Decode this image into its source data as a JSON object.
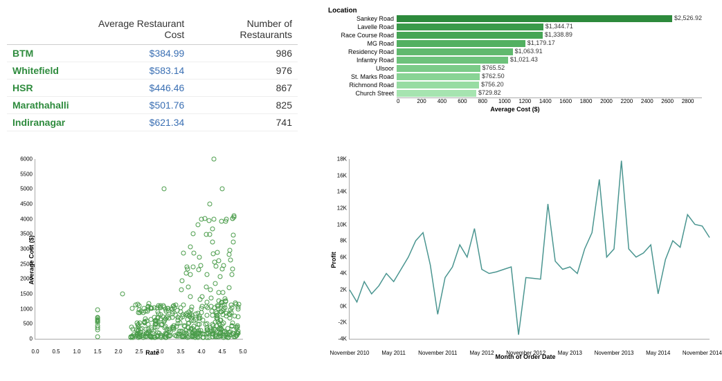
{
  "table": {
    "columns": [
      "",
      "Average Restaurant Cost",
      "Number of Restaurants"
    ],
    "rows": [
      {
        "loc": "BTM",
        "cost": "$384.99",
        "count": 986
      },
      {
        "loc": "Whitefield",
        "cost": "$583.14",
        "count": 976
      },
      {
        "loc": "HSR",
        "cost": "$446.46",
        "count": 867
      },
      {
        "loc": "Marathahalli",
        "cost": "$501.76",
        "count": 825
      },
      {
        "loc": "Indiranagar",
        "cost": "$621.34",
        "count": 741
      }
    ],
    "loc_color": "#2e8b3d",
    "amt_color": "#3a6fb3"
  },
  "bar_chart": {
    "type": "bar",
    "legend": "Location",
    "xlabel": "Average Cost ($)",
    "xlim": [
      0,
      2800
    ],
    "xtick_step": 200,
    "bars": [
      {
        "label": "Sankey Road",
        "value": 2526.92,
        "text": "$2,526.92",
        "color": "#2d8a3c"
      },
      {
        "label": "Lavelle Road",
        "value": 1344.71,
        "text": "$1,344.71",
        "color": "#3a9a4a"
      },
      {
        "label": "Race Course Road",
        "value": 1338.89,
        "text": "$1,338.89",
        "color": "#46a555"
      },
      {
        "label": "MG Road",
        "value": 1179.17,
        "text": "$1,179.17",
        "color": "#52b061"
      },
      {
        "label": "Residency Road",
        "value": 1063.91,
        "text": "$1,063.91",
        "color": "#60b96e"
      },
      {
        "label": "Infantry Road",
        "value": 1021.43,
        "text": "$1,021.43",
        "color": "#6dc27b"
      },
      {
        "label": "Ulsoor",
        "value": 765.52,
        "text": "$765.52",
        "color": "#7bcb88"
      },
      {
        "label": "St. Marks Road",
        "value": 762.5,
        "text": "$762.50",
        "color": "#89d495"
      },
      {
        "label": "Richmond Road",
        "value": 756.2,
        "text": "$756.20",
        "color": "#97dca2"
      },
      {
        "label": "Church Street",
        "value": 729.82,
        "text": "$729.82",
        "color": "#a6e4b0"
      }
    ]
  },
  "scatter": {
    "type": "scatter",
    "xlabel": "Rate",
    "ylabel": "Average Cost ($)",
    "xlim": [
      0,
      5
    ],
    "ylim": [
      0,
      6000
    ],
    "xtick_step": 0.5,
    "ytick_step": 500,
    "marker_color": "#4a9c4a",
    "generate": {
      "cluster_points": 380,
      "cluster_x_range": [
        2.3,
        4.9
      ],
      "cluster_y_range": [
        50,
        1200
      ],
      "tail_points": 60,
      "tail_x_range": [
        3.5,
        4.8
      ],
      "tail_y_range": [
        1200,
        4200
      ],
      "strip_x": 1.5,
      "strip_points": 12,
      "strip_y_range": [
        50,
        1000
      ],
      "outliers": [
        [
          4.3,
          6000
        ],
        [
          3.1,
          5000
        ],
        [
          4.5,
          5000
        ],
        [
          4.2,
          4500
        ],
        [
          4.0,
          4000
        ],
        [
          4.3,
          4000
        ],
        [
          4.6,
          4000
        ],
        [
          2.1,
          1500
        ],
        [
          3.8,
          3500
        ]
      ]
    }
  },
  "line_chart": {
    "type": "line",
    "xlabel": "Month of Order Date",
    "ylabel": "Profit",
    "ylim": [
      -4000,
      18000
    ],
    "ytick_step": 2000,
    "line_color": "#4a9590",
    "series": [
      2000,
      500,
      3000,
      1500,
      2500,
      4000,
      3000,
      4500,
      6000,
      8000,
      9000,
      5000,
      -1000,
      3500,
      4800,
      7500,
      6000,
      9500,
      4500,
      4000,
      4200,
      4500,
      4800,
      -3500,
      3500,
      3400,
      3300,
      12500,
      5500,
      4500,
      4800,
      4000,
      7000,
      9000,
      15500,
      6000,
      7000,
      17800,
      7000,
      6000,
      6500,
      7500,
      1500,
      5700,
      8000,
      7200,
      11200,
      10000,
      9800,
      8400
    ],
    "xtick_indices": [
      0,
      6,
      12,
      18,
      24,
      30,
      36,
      42,
      48
    ],
    "xtick_labels": [
      "November 2010",
      "May 2011",
      "November 2011",
      "May 2012",
      "November 2012",
      "May 2013",
      "November 2013",
      "May 2014",
      "November 2014"
    ]
  }
}
